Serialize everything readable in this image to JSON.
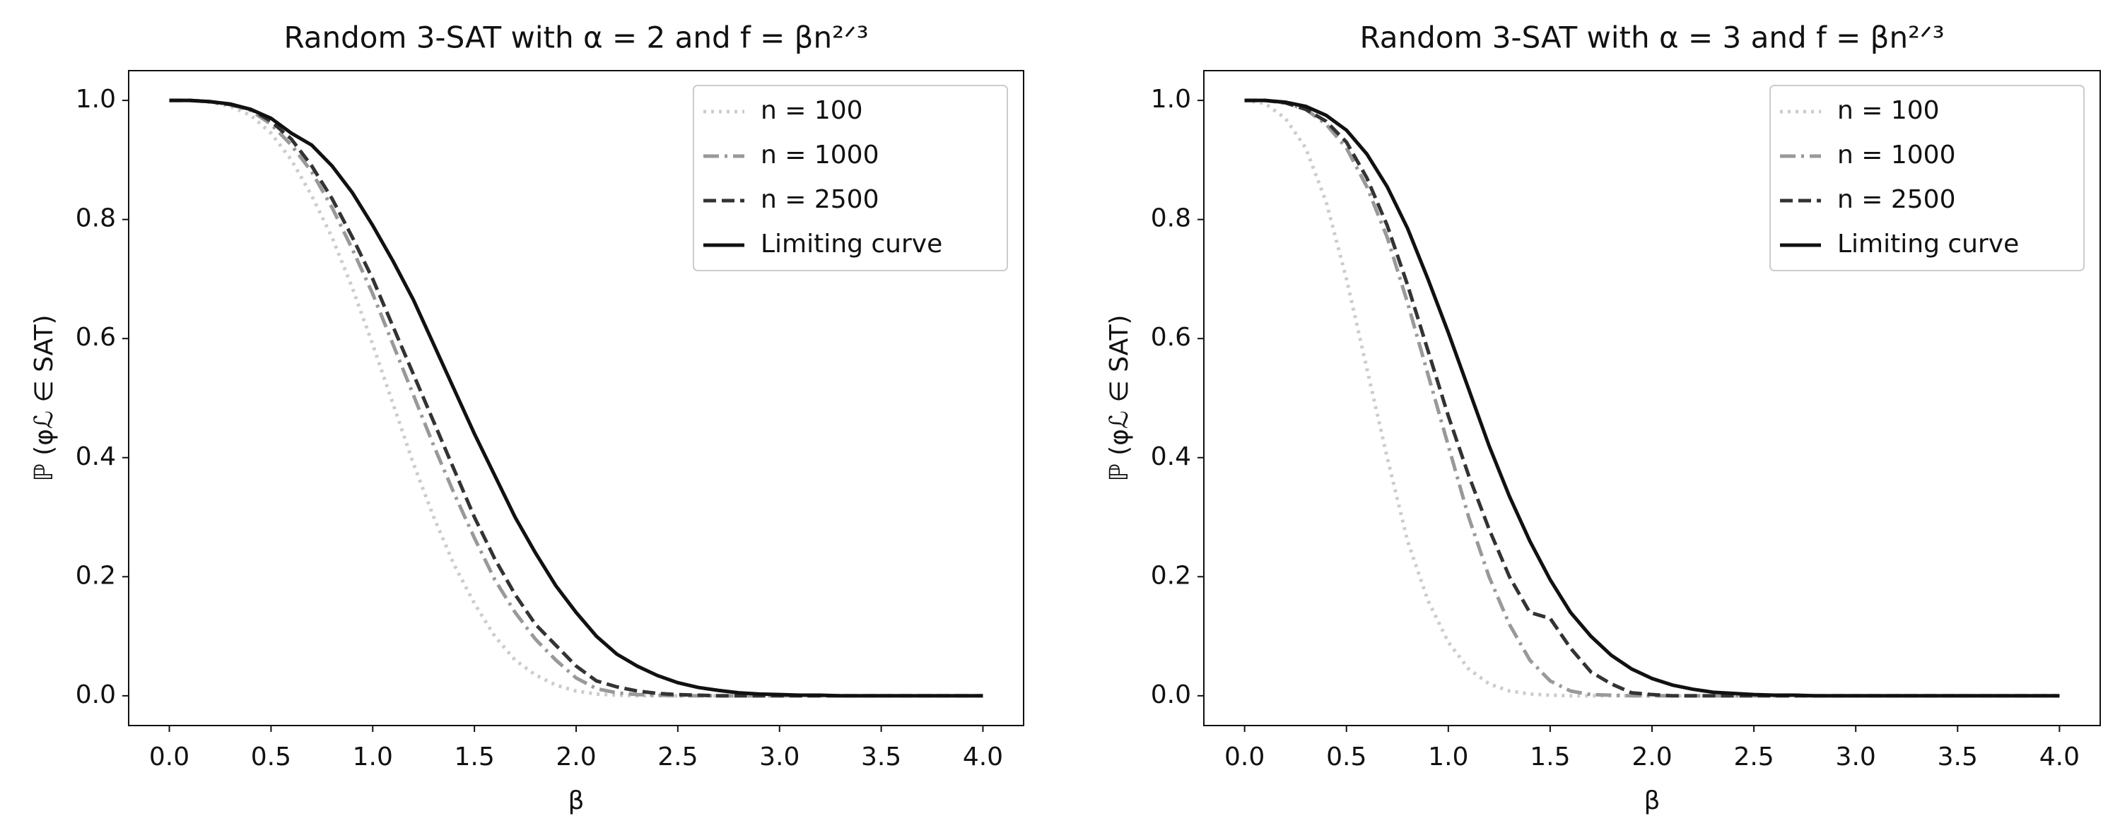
{
  "chart_data": [
    {
      "type": "line",
      "title": "Random 3-SAT with α = 2 and f = βn²ᐟ³",
      "x_label": "β",
      "y_label": "ℙ (φℒ ∈ SAT)",
      "x": [
        0,
        0.1,
        0.2,
        0.3,
        0.4,
        0.5,
        0.6,
        0.7,
        0.8,
        0.9,
        1.0,
        1.1,
        1.2,
        1.3,
        1.4,
        1.5,
        1.6,
        1.7,
        1.8,
        1.9,
        2.0,
        2.1,
        2.2,
        2.3,
        2.4,
        2.5,
        2.6,
        2.7,
        2.8,
        2.9,
        3.0,
        3.1,
        3.2,
        3.3,
        3.4,
        3.5,
        3.6,
        3.7,
        3.8,
        3.9,
        4.0
      ],
      "xlim": [
        -0.2,
        4.2
      ],
      "ylim": [
        -0.05,
        1.05
      ],
      "xticks": [
        {
          "value": 0,
          "label": "0.0"
        },
        0.5,
        {
          "value": 1,
          "label": "1.0"
        },
        1.5,
        {
          "value": 2,
          "label": "2.0"
        },
        2.5,
        {
          "value": 3,
          "label": "3.0"
        },
        3.5,
        {
          "value": 4,
          "label": "4.0"
        }
      ],
      "yticks": [
        {
          "value": 0,
          "label": "0.0"
        },
        0.2,
        0.4,
        0.6,
        0.8,
        {
          "value": 1,
          "label": "1.0"
        }
      ],
      "legend": "upper right",
      "series": [
        {
          "name": "n = 100",
          "color": "#cccccc",
          "linestyle": "dotted",
          "values": [
            1,
            1,
            0.997,
            0.99,
            0.975,
            0.945,
            0.9,
            0.84,
            0.77,
            0.685,
            0.59,
            0.49,
            0.39,
            0.3,
            0.22,
            0.155,
            0.1,
            0.06,
            0.035,
            0.018,
            0.008,
            0.003,
            0.001,
            0,
            0,
            0,
            0,
            0,
            0,
            0,
            0,
            0,
            0,
            0,
            0,
            0,
            0,
            0,
            0,
            0,
            0
          ]
        },
        {
          "name": "n = 1000",
          "color": "#999999",
          "linestyle": "dashdot",
          "values": [
            1,
            1,
            0.998,
            0.993,
            0.983,
            0.96,
            0.925,
            0.88,
            0.82,
            0.75,
            0.675,
            0.59,
            0.505,
            0.42,
            0.34,
            0.265,
            0.195,
            0.14,
            0.095,
            0.06,
            0.03,
            0.012,
            0.005,
            0.002,
            0.001,
            0,
            0,
            0,
            0,
            0,
            0,
            0,
            0,
            0,
            0,
            0,
            0,
            0,
            0,
            0,
            0
          ]
        },
        {
          "name": "n = 2500",
          "color": "#333333",
          "linestyle": "dashed",
          "values": [
            1,
            1,
            0.998,
            0.993,
            0.985,
            0.965,
            0.935,
            0.89,
            0.835,
            0.77,
            0.7,
            0.62,
            0.54,
            0.46,
            0.38,
            0.3,
            0.23,
            0.17,
            0.12,
            0.085,
            0.05,
            0.025,
            0.015,
            0.008,
            0.004,
            0.002,
            0.001,
            0,
            0,
            0,
            0,
            0,
            0,
            0,
            0,
            0,
            0,
            0,
            0,
            0,
            0
          ]
        },
        {
          "name": "Limiting curve",
          "color": "#111111",
          "linestyle": "solid",
          "values": [
            1,
            1,
            0.998,
            0.994,
            0.985,
            0.97,
            0.945,
            0.925,
            0.89,
            0.845,
            0.79,
            0.73,
            0.665,
            0.59,
            0.515,
            0.44,
            0.37,
            0.3,
            0.24,
            0.185,
            0.14,
            0.1,
            0.07,
            0.05,
            0.034,
            0.022,
            0.014,
            0.009,
            0.005,
            0.003,
            0.002,
            0.001,
            0.001,
            0,
            0,
            0,
            0,
            0,
            0,
            0,
            0
          ]
        }
      ]
    },
    {
      "type": "line",
      "title": "Random 3-SAT with α = 3 and f = βn²ᐟ³",
      "x_label": "β",
      "y_label": "ℙ (φℒ ∈ SAT)",
      "x": [
        0,
        0.1,
        0.2,
        0.3,
        0.4,
        0.5,
        0.6,
        0.7,
        0.8,
        0.9,
        1.0,
        1.1,
        1.2,
        1.3,
        1.4,
        1.5,
        1.6,
        1.7,
        1.8,
        1.9,
        2.0,
        2.1,
        2.2,
        2.3,
        2.4,
        2.5,
        2.6,
        2.7,
        2.8,
        2.9,
        3.0,
        3.1,
        3.2,
        3.3,
        3.4,
        3.5,
        3.6,
        3.7,
        3.8,
        3.9,
        4.0
      ],
      "xlim": [
        -0.2,
        4.2
      ],
      "ylim": [
        -0.05,
        1.05
      ],
      "xticks": [
        {
          "value": 0,
          "label": "0.0"
        },
        0.5,
        {
          "value": 1,
          "label": "1.0"
        },
        1.5,
        {
          "value": 2,
          "label": "2.0"
        },
        2.5,
        {
          "value": 3,
          "label": "3.0"
        },
        3.5,
        {
          "value": 4,
          "label": "4.0"
        }
      ],
      "yticks": [
        {
          "value": 0,
          "label": "0.0"
        },
        0.2,
        0.4,
        0.6,
        0.8,
        {
          "value": 1,
          "label": "1.0"
        }
      ],
      "legend": "upper right",
      "series": [
        {
          "name": "n = 100",
          "color": "#cccccc",
          "linestyle": "dotted",
          "values": [
            1,
            0.995,
            0.97,
            0.92,
            0.83,
            0.7,
            0.55,
            0.4,
            0.26,
            0.16,
            0.09,
            0.045,
            0.02,
            0.008,
            0.003,
            0.001,
            0,
            0,
            0,
            0,
            0,
            0,
            0,
            0,
            0,
            0,
            0,
            0,
            0,
            0,
            0,
            0,
            0,
            0,
            0,
            0,
            0,
            0,
            0,
            0,
            0
          ]
        },
        {
          "name": "n = 1000",
          "color": "#999999",
          "linestyle": "dashdot",
          "values": [
            1,
            1,
            0.996,
            0.985,
            0.96,
            0.92,
            0.855,
            0.77,
            0.66,
            0.54,
            0.42,
            0.3,
            0.2,
            0.12,
            0.06,
            0.025,
            0.008,
            0.002,
            0.001,
            0,
            0,
            0,
            0,
            0,
            0,
            0,
            0,
            0,
            0,
            0,
            0,
            0,
            0,
            0,
            0,
            0,
            0,
            0,
            0,
            0,
            0
          ]
        },
        {
          "name": "n = 2500",
          "color": "#333333",
          "linestyle": "dashed",
          "values": [
            1,
            1,
            0.996,
            0.985,
            0.965,
            0.93,
            0.87,
            0.79,
            0.69,
            0.58,
            0.47,
            0.37,
            0.28,
            0.2,
            0.14,
            0.13,
            0.08,
            0.04,
            0.02,
            0.005,
            0.002,
            0,
            0,
            0,
            0,
            0,
            0,
            0,
            0,
            0,
            0,
            0,
            0,
            0,
            0,
            0,
            0,
            0,
            0,
            0,
            0
          ]
        },
        {
          "name": "Limiting curve",
          "color": "#111111",
          "linestyle": "solid",
          "values": [
            1,
            1,
            0.997,
            0.99,
            0.975,
            0.95,
            0.91,
            0.855,
            0.785,
            0.7,
            0.61,
            0.515,
            0.42,
            0.335,
            0.26,
            0.195,
            0.14,
            0.1,
            0.068,
            0.045,
            0.029,
            0.018,
            0.011,
            0.006,
            0.004,
            0.002,
            0.001,
            0.001,
            0,
            0,
            0,
            0,
            0,
            0,
            0,
            0,
            0,
            0,
            0,
            0,
            0
          ]
        }
      ]
    }
  ]
}
